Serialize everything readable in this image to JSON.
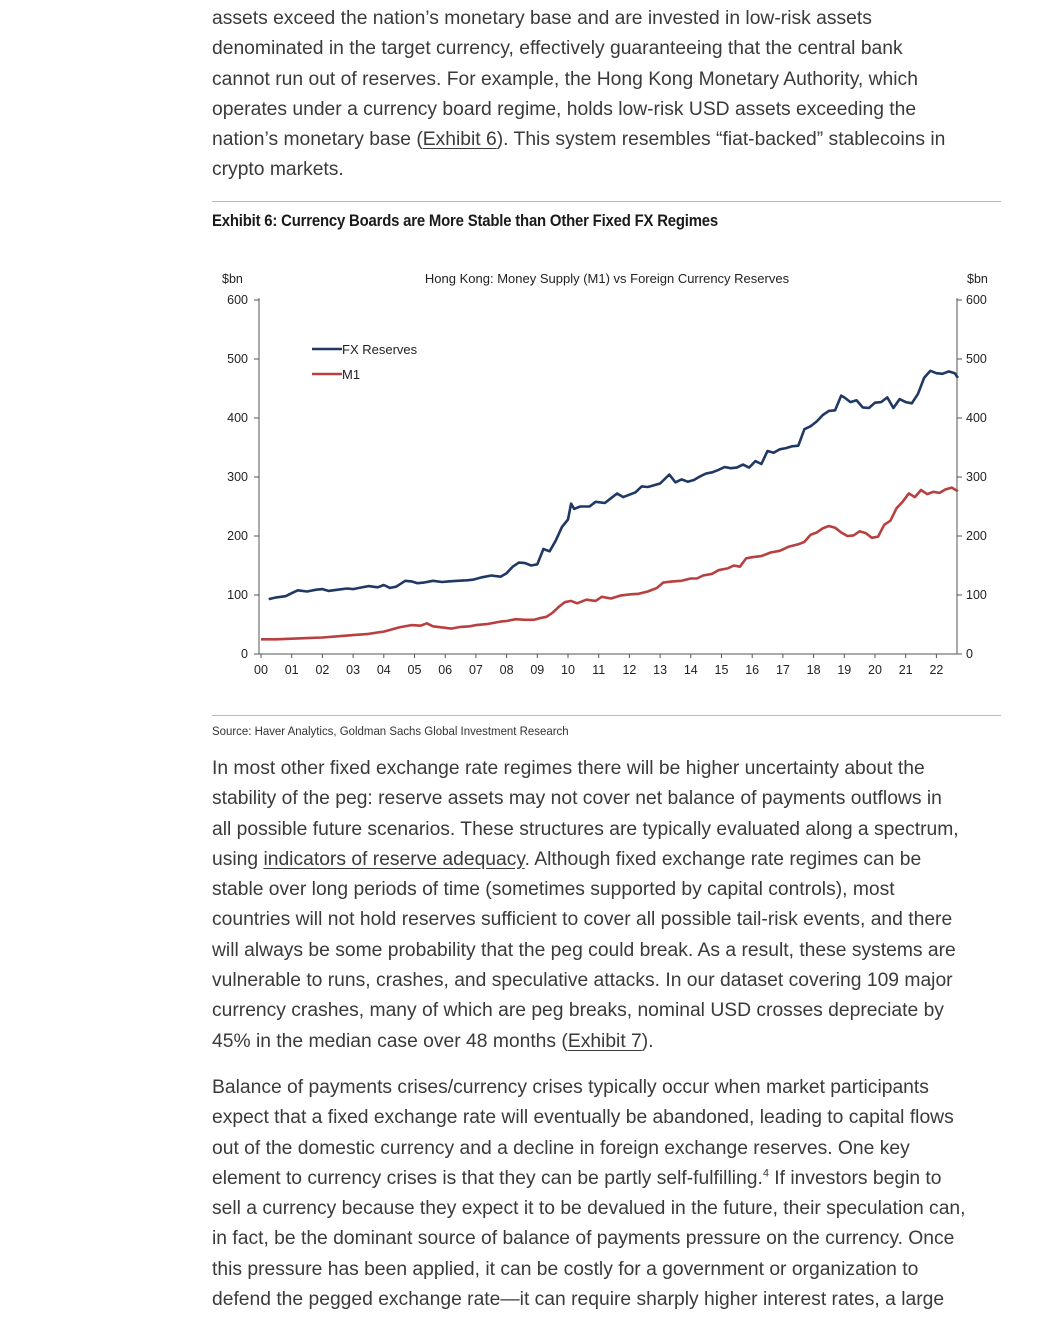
{
  "intro_paragraph": {
    "lines": [
      "assets exceed the nation’s monetary base and are invested in low-risk assets",
      "denominated in the target currency, effectively guaranteeing that the central bank",
      "cannot run out of reserves. For example, the Hong Kong Monetary Authority, which",
      "operates under a currency board regime, holds low-risk USD assets exceeding the"
    ],
    "line5_before": "nation’s monetary base (",
    "line5_link": "Exhibit 6",
    "line5_after": "). This system resembles “fiat-backed” stablecoins in",
    "line6": "crypto markets."
  },
  "exhibit": {
    "title": "Exhibit 6: Currency Boards are More Stable than Other Fixed FX Regimes",
    "source": "Source: Haver Analytics, Goldman Sachs Global Investment Research"
  },
  "chart_data": {
    "type": "line",
    "title": "Hong Kong: Money Supply (M1) vs Foreign Currency Reserves",
    "ylabel_left": "$bn",
    "ylabel_right": "$bn",
    "ylim": [
      0,
      600
    ],
    "yticks": [
      "0",
      "100",
      "200",
      "300",
      "400",
      "500",
      "600"
    ],
    "x_tick_labels": [
      "00",
      "01",
      "02",
      "03",
      "04",
      "05",
      "06",
      "07",
      "08",
      "09",
      "10",
      "11",
      "12",
      "13",
      "14",
      "15",
      "16",
      "17",
      "18",
      "19",
      "20",
      "21",
      "22"
    ],
    "xlim": [
      2000,
      2022.5
    ],
    "legend_position": "top-left",
    "series": [
      {
        "name": "FX Reserves",
        "color": "#1f3864",
        "points": [
          [
            2000.25,
            93
          ],
          [
            2000.5,
            96
          ],
          [
            2000.8,
            98
          ],
          [
            2001.0,
            103
          ],
          [
            2001.2,
            108
          ],
          [
            2001.5,
            106
          ],
          [
            2001.8,
            109
          ],
          [
            2002.0,
            110
          ],
          [
            2002.2,
            107
          ],
          [
            2002.5,
            109
          ],
          [
            2002.8,
            111
          ],
          [
            2003.0,
            110
          ],
          [
            2003.2,
            112
          ],
          [
            2003.5,
            115
          ],
          [
            2003.8,
            113
          ],
          [
            2004.0,
            117
          ],
          [
            2004.2,
            112
          ],
          [
            2004.4,
            114
          ],
          [
            2004.7,
            124
          ],
          [
            2004.9,
            123
          ],
          [
            2005.1,
            120
          ],
          [
            2005.3,
            121
          ],
          [
            2005.6,
            124
          ],
          [
            2005.9,
            122
          ],
          [
            2006.1,
            123
          ],
          [
            2006.4,
            124
          ],
          [
            2006.7,
            125
          ],
          [
            2006.9,
            126
          ],
          [
            2007.2,
            130
          ],
          [
            2007.5,
            133
          ],
          [
            2007.8,
            131
          ],
          [
            2008.0,
            137
          ],
          [
            2008.2,
            148
          ],
          [
            2008.4,
            155
          ],
          [
            2008.6,
            154
          ],
          [
            2008.8,
            150
          ],
          [
            2009.0,
            152
          ],
          [
            2009.2,
            178
          ],
          [
            2009.4,
            174
          ],
          [
            2009.6,
            192
          ],
          [
            2009.8,
            215
          ],
          [
            2010.0,
            228
          ],
          [
            2010.1,
            255
          ],
          [
            2010.2,
            246
          ],
          [
            2010.4,
            250
          ],
          [
            2010.7,
            250
          ],
          [
            2010.9,
            258
          ],
          [
            2011.2,
            256
          ],
          [
            2011.4,
            264
          ],
          [
            2011.6,
            272
          ],
          [
            2011.8,
            266
          ],
          [
            2012.0,
            270
          ],
          [
            2012.2,
            274
          ],
          [
            2012.4,
            284
          ],
          [
            2012.6,
            283
          ],
          [
            2012.8,
            286
          ],
          [
            2013.0,
            289
          ],
          [
            2013.3,
            304
          ],
          [
            2013.5,
            291
          ],
          [
            2013.7,
            296
          ],
          [
            2013.9,
            292
          ],
          [
            2014.1,
            295
          ],
          [
            2014.3,
            301
          ],
          [
            2014.5,
            306
          ],
          [
            2014.7,
            308
          ],
          [
            2014.9,
            312
          ],
          [
            2015.1,
            317
          ],
          [
            2015.3,
            315
          ],
          [
            2015.5,
            316
          ],
          [
            2015.7,
            321
          ],
          [
            2015.9,
            316
          ],
          [
            2016.1,
            327
          ],
          [
            2016.3,
            322
          ],
          [
            2016.5,
            344
          ],
          [
            2016.7,
            341
          ],
          [
            2016.9,
            347
          ],
          [
            2017.1,
            349
          ],
          [
            2017.3,
            352
          ],
          [
            2017.5,
            353
          ],
          [
            2017.7,
            381
          ],
          [
            2017.9,
            386
          ],
          [
            2018.1,
            394
          ],
          [
            2018.3,
            405
          ],
          [
            2018.5,
            412
          ],
          [
            2018.7,
            413
          ],
          [
            2018.9,
            438
          ],
          [
            2019.0,
            435
          ],
          [
            2019.2,
            427
          ],
          [
            2019.4,
            430
          ],
          [
            2019.6,
            418
          ],
          [
            2019.8,
            417
          ],
          [
            2020.0,
            426
          ],
          [
            2020.2,
            427
          ],
          [
            2020.4,
            435
          ],
          [
            2020.6,
            417
          ],
          [
            2020.8,
            432
          ],
          [
            2021.0,
            427
          ],
          [
            2021.2,
            425
          ],
          [
            2021.4,
            441
          ],
          [
            2021.6,
            468
          ],
          [
            2021.8,
            480
          ],
          [
            2022.0,
            476
          ],
          [
            2022.2,
            475
          ],
          [
            2022.4,
            479
          ],
          [
            2022.6,
            476
          ],
          [
            2022.7,
            468
          ]
        ]
      },
      {
        "name": "M1",
        "color": "#b94040",
        "points": [
          [
            2000.0,
            25
          ],
          [
            2000.5,
            25
          ],
          [
            2001.0,
            26
          ],
          [
            2001.5,
            27
          ],
          [
            2002.0,
            28
          ],
          [
            2002.5,
            30
          ],
          [
            2003.0,
            32
          ],
          [
            2003.5,
            34
          ],
          [
            2004.0,
            38
          ],
          [
            2004.5,
            45
          ],
          [
            2004.9,
            49
          ],
          [
            2005.2,
            48
          ],
          [
            2005.4,
            52
          ],
          [
            2005.6,
            47
          ],
          [
            2005.9,
            45
          ],
          [
            2006.2,
            43
          ],
          [
            2006.5,
            46
          ],
          [
            2006.8,
            47
          ],
          [
            2007.0,
            49
          ],
          [
            2007.4,
            51
          ],
          [
            2007.8,
            55
          ],
          [
            2008.0,
            56
          ],
          [
            2008.3,
            59
          ],
          [
            2008.6,
            58
          ],
          [
            2008.9,
            58
          ],
          [
            2009.1,
            61
          ],
          [
            2009.3,
            63
          ],
          [
            2009.5,
            70
          ],
          [
            2009.7,
            80
          ],
          [
            2009.9,
            88
          ],
          [
            2010.1,
            90
          ],
          [
            2010.3,
            86
          ],
          [
            2010.6,
            92
          ],
          [
            2010.9,
            90
          ],
          [
            2011.1,
            97
          ],
          [
            2011.4,
            94
          ],
          [
            2011.7,
            99
          ],
          [
            2012.0,
            101
          ],
          [
            2012.3,
            102
          ],
          [
            2012.6,
            106
          ],
          [
            2012.9,
            112
          ],
          [
            2013.1,
            121
          ],
          [
            2013.4,
            123
          ],
          [
            2013.7,
            124
          ],
          [
            2014.0,
            128
          ],
          [
            2014.2,
            128
          ],
          [
            2014.4,
            133
          ],
          [
            2014.7,
            136
          ],
          [
            2014.9,
            142
          ],
          [
            2015.2,
            145
          ],
          [
            2015.4,
            150
          ],
          [
            2015.6,
            148
          ],
          [
            2015.8,
            162
          ],
          [
            2016.0,
            164
          ],
          [
            2016.3,
            166
          ],
          [
            2016.6,
            172
          ],
          [
            2016.9,
            175
          ],
          [
            2017.2,
            182
          ],
          [
            2017.5,
            186
          ],
          [
            2017.7,
            190
          ],
          [
            2017.9,
            202
          ],
          [
            2018.1,
            206
          ],
          [
            2018.3,
            213
          ],
          [
            2018.5,
            217
          ],
          [
            2018.7,
            214
          ],
          [
            2018.9,
            206
          ],
          [
            2019.1,
            200
          ],
          [
            2019.3,
            201
          ],
          [
            2019.5,
            208
          ],
          [
            2019.7,
            205
          ],
          [
            2019.9,
            197
          ],
          [
            2020.1,
            199
          ],
          [
            2020.3,
            219
          ],
          [
            2020.5,
            226
          ],
          [
            2020.7,
            247
          ],
          [
            2020.9,
            258
          ],
          [
            2021.1,
            272
          ],
          [
            2021.3,
            266
          ],
          [
            2021.5,
            278
          ],
          [
            2021.7,
            271
          ],
          [
            2021.9,
            275
          ],
          [
            2022.1,
            273
          ],
          [
            2022.3,
            279
          ],
          [
            2022.5,
            282
          ],
          [
            2022.7,
            276
          ]
        ]
      }
    ]
  },
  "second_paragraph": {
    "lines_before": [
      "In most other fixed exchange rate regimes there will be higher uncertainty about the",
      "stability of the peg: reserve assets may not cover net balance of payments outflows in",
      "all possible future scenarios. These structures are typically evaluated along a spectrum,"
    ],
    "line4_before": "using ",
    "line4_link": "indicators of reserve adequacy",
    "line4_after": ". Although fixed exchange rate regimes can be",
    "lines_after": [
      "stable over long periods of time (sometimes supported by capital controls), most",
      "countries will not hold reserves sufficient to cover all possible tail-risk events, and there",
      "will always be some probability that the peg could break. As a result, these systems are",
      "vulnerable to runs, crashes, and speculative attacks. In our dataset covering 109 major",
      "currency crashes, many of which are peg breaks, nominal USD crosses depreciate by"
    ],
    "last_before": "45% in the median case over 48 months (",
    "last_link": "Exhibit 7",
    "last_after": ")."
  },
  "third_paragraph": {
    "lines_before": [
      "Balance of payments crises/currency crises typically occur when market participants",
      "expect that a fixed exchange rate will eventually be abandoned, leading to capital flows",
      "out of the domestic currency and a decline in foreign exchange reserves. One key"
    ],
    "line4_text": "element to currency crises is that they can be partly self-fulfilling.",
    "line4_footnote": "4",
    "line4_after": " If investors begin to",
    "lines_after": [
      "sell a currency because they expect it to be devalued in the future, their speculation can,",
      "in fact, be the dominant source of balance of payments pressure on the currency. Once",
      "this pressure has been applied, it can be costly for a government or organization to",
      "defend the pegged exchange rate—it can require sharply higher interest rates, a large"
    ]
  }
}
